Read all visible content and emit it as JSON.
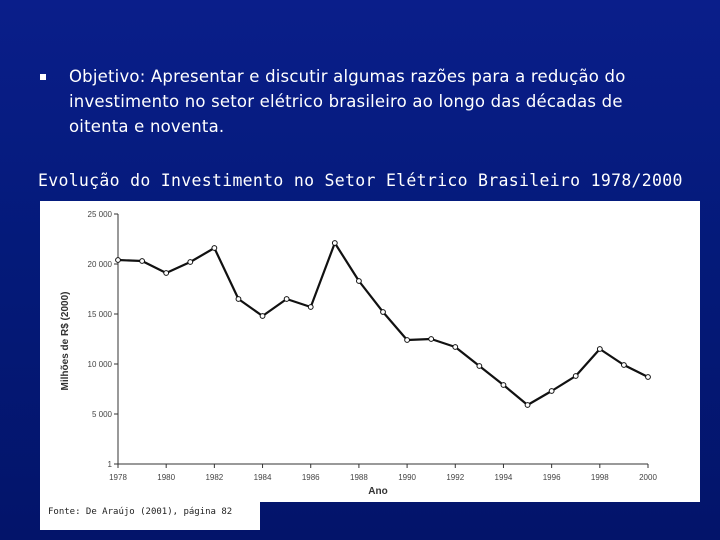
{
  "bullet": {
    "keyword": "Objetivo",
    "text": ": Apresentar e discutir algumas razões para a redução do investimento no setor elétrico brasileiro ao longo das décadas de oitenta e noventa."
  },
  "section_title": "Evolução do Investimento no Setor Elétrico Brasileiro 1978/2000",
  "source": "Fonte: De Araújo (2001), página 82",
  "chart_data": {
    "type": "line",
    "title": "Evolução do Investimento no Setor Elétrico Brasileiro 1978/2000",
    "xlabel": "Ano",
    "ylabel": "Milhões de R$ (2000)",
    "x": [
      1978,
      1979,
      1980,
      1981,
      1982,
      1983,
      1984,
      1985,
      1986,
      1987,
      1988,
      1989,
      1990,
      1991,
      1992,
      1993,
      1994,
      1995,
      1996,
      1997,
      1998,
      1999,
      2000
    ],
    "series": [
      {
        "values": [
          20400,
          20300,
          19100,
          20200,
          21600,
          16500,
          14800,
          16500,
          15700,
          22100,
          18300,
          15200,
          12400,
          12500,
          11700,
          9800,
          7900,
          5900,
          7300,
          8800,
          11500,
          9900,
          8700
        ]
      }
    ],
    "xticks": [
      "1978",
      "1980",
      "1982",
      "1984",
      "1986",
      "1988",
      "1990",
      "1992",
      "1994",
      "1996",
      "1998",
      "2000"
    ],
    "yticks": [
      "1",
      "5 000",
      "10 000",
      "15 000",
      "20 000",
      "25 000"
    ],
    "ylim": [
      1,
      25000
    ],
    "xlim": [
      1978,
      2000
    ],
    "grid": false,
    "colors": {
      "line": "#111111",
      "marker_fill": "#ffffff"
    }
  }
}
